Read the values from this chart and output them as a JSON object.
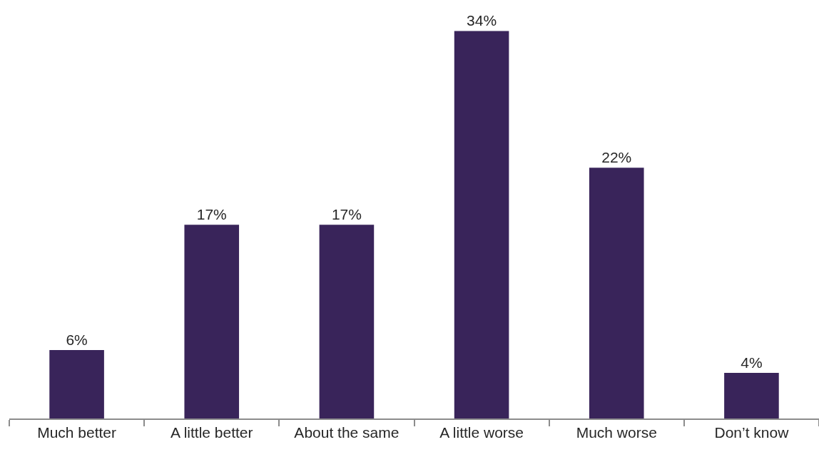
{
  "chart_data": {
    "type": "bar",
    "categories": [
      "Much better",
      "A little better",
      "About the same",
      "A little worse",
      "Much worse",
      "Don’t know"
    ],
    "values": [
      6,
      17,
      17,
      34,
      22,
      4
    ],
    "value_labels": [
      "6%",
      "17%",
      "17%",
      "34%",
      "22%",
      "4%"
    ],
    "color": "#39245a"
  }
}
